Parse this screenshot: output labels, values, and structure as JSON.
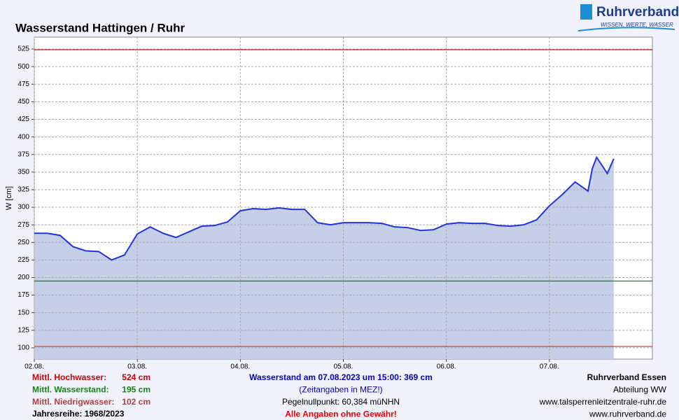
{
  "chart_data": {
    "type": "line",
    "title": "Wasserstand Hattingen / Ruhr",
    "ylabel": "W [cm]",
    "brand": {
      "name": "Ruhrverband",
      "slogan": "WISSEN, WERTE, WASSER"
    },
    "x": [
      0,
      3,
      6,
      9,
      12,
      15,
      18,
      21,
      24,
      27,
      30,
      33,
      36,
      39,
      42,
      45,
      48,
      51,
      54,
      57,
      60,
      63,
      66,
      69,
      72,
      75,
      78,
      81,
      84,
      87,
      90,
      93,
      96,
      99,
      102,
      105,
      108,
      111,
      114,
      117,
      120,
      123,
      126,
      129,
      130,
      131,
      132,
      133.5,
      135
    ],
    "series": [
      {
        "name": "Wasserstand",
        "color": "#2233dd",
        "fill": "#c5d0e8",
        "values": [
          263,
          263,
          260,
          244,
          238,
          237,
          225,
          232,
          262,
          272,
          263,
          257,
          265,
          273,
          274,
          279,
          295,
          298,
          297,
          299,
          297,
          297,
          278,
          275,
          278,
          278,
          278,
          277,
          272,
          271,
          267,
          268,
          276,
          278,
          277,
          277,
          274,
          273,
          275,
          282,
          302,
          318,
          336,
          323,
          355,
          371,
          362,
          348,
          369
        ]
      }
    ],
    "reference_lines": [
      {
        "name": "Mittl. Hochwasser:",
        "value": 524,
        "value_label": "524 cm",
        "color": "#cc0000"
      },
      {
        "name": "Mittl. Wasserstand:",
        "value": 195,
        "value_label": "195 cm",
        "color": "#118811"
      },
      {
        "name": "Mittl. Niedrigwasser:",
        "value": 102,
        "value_label": "102 cm",
        "color": "#b04040"
      }
    ],
    "xlim": [
      0,
      144
    ],
    "xticks": [
      {
        "value": 0,
        "label": "02.08."
      },
      {
        "value": 24,
        "label": "03.08."
      },
      {
        "value": 48,
        "label": "04.08."
      },
      {
        "value": 72,
        "label": "05.08."
      },
      {
        "value": 96,
        "label": "06.08."
      },
      {
        "value": 120,
        "label": "07.08."
      }
    ],
    "ylim": [
      84,
      542
    ],
    "yticks": [
      100,
      125,
      150,
      175,
      200,
      225,
      250,
      275,
      300,
      325,
      350,
      375,
      400,
      425,
      450,
      475,
      500,
      525
    ],
    "grid": true,
    "series_years": "Jahresreihe: 1968/2023",
    "info": [
      "Wasserstand am 07.08.2023 um 15:00: 369 cm",
      "(Zeitangaben in MEZ!)",
      "Pegelnullpunkt:   60,384 müNHN",
      "Alle Angaben ohne Gewähr!"
    ],
    "contact": [
      "Ruhrverband Essen",
      "Abteilung WW",
      "www.talsperrenleitzentrale-ruhr.de",
      "www.ruhrverband.de"
    ]
  }
}
